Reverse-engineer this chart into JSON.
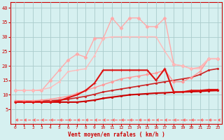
{
  "xlabel": "Vent moyen/en rafales ( km/h )",
  "xlim": [
    -0.5,
    23.5
  ],
  "ylim": [
    0,
    42
  ],
  "yticks": [
    5,
    10,
    15,
    20,
    25,
    30,
    35,
    40
  ],
  "xticks": [
    0,
    1,
    2,
    3,
    4,
    5,
    6,
    7,
    8,
    9,
    10,
    11,
    12,
    13,
    14,
    15,
    16,
    17,
    18,
    19,
    20,
    21,
    22,
    23
  ],
  "background_color": "#d6f0f0",
  "grid_color": "#aacccc",
  "series": [
    {
      "x": [
        0,
        1,
        2,
        3,
        4,
        5,
        6,
        7,
        8,
        9,
        10,
        11,
        12,
        13,
        14,
        15,
        16,
        17,
        18,
        19,
        20,
        21,
        22,
        23
      ],
      "y": [
        1.5,
        1.5,
        1.5,
        1.5,
        1.5,
        1.5,
        1.5,
        1.5,
        1.5,
        1.5,
        1.5,
        1.5,
        1.5,
        1.5,
        1.5,
        1.5,
        1.5,
        1.5,
        1.5,
        1.5,
        1.5,
        1.5,
        1.5,
        1.5
      ],
      "color": "#ff6666",
      "lw": 0.8,
      "marker": 4,
      "markersize": 3,
      "linestyle": "--"
    },
    {
      "x": [
        0,
        1,
        2,
        3,
        4,
        5,
        6,
        7,
        8,
        9,
        10,
        11,
        12,
        13,
        14,
        15,
        16,
        17,
        18,
        19,
        20,
        21,
        22,
        23
      ],
      "y": [
        7.5,
        7.5,
        7.5,
        7.5,
        7.5,
        7.5,
        7.5,
        7.5,
        7.8,
        8.2,
        8.8,
        9.2,
        9.6,
        10.0,
        10.2,
        10.4,
        10.6,
        10.7,
        10.9,
        11.0,
        11.1,
        11.2,
        11.4,
        11.5
      ],
      "color": "#cc0000",
      "lw": 1.5,
      "marker": "s",
      "markersize": 2,
      "linestyle": "-"
    },
    {
      "x": [
        0,
        1,
        2,
        3,
        4,
        5,
        6,
        7,
        8,
        9,
        10,
        11,
        12,
        13,
        14,
        15,
        16,
        17,
        18,
        19,
        20,
        21,
        22,
        23
      ],
      "y": [
        7.8,
        7.8,
        7.8,
        7.9,
        8.0,
        8.2,
        8.5,
        9.0,
        9.5,
        10.2,
        11.0,
        11.5,
        12.0,
        12.5,
        13.0,
        13.5,
        14.0,
        14.5,
        15.0,
        15.5,
        16.0,
        17.0,
        18.5,
        19.0
      ],
      "color": "#cc2222",
      "lw": 1.2,
      "marker": "s",
      "markersize": 1.8,
      "linestyle": "-"
    },
    {
      "x": [
        0,
        1,
        2,
        3,
        4,
        5,
        6,
        7,
        8,
        9,
        10,
        11,
        12,
        13,
        14,
        15,
        16,
        17,
        18,
        19,
        20,
        21,
        22,
        23
      ],
      "y": [
        8.0,
        8.0,
        8.0,
        8.2,
        8.5,
        9.0,
        9.5,
        10.5,
        11.5,
        12.5,
        13.5,
        14.5,
        15.5,
        16.0,
        16.5,
        17.0,
        17.5,
        18.5,
        14.5,
        14.5,
        16.0,
        18.0,
        22.5,
        22.5
      ],
      "color": "#ff9999",
      "lw": 1.0,
      "marker": "D",
      "markersize": 2,
      "linestyle": "-"
    },
    {
      "x": [
        0,
        1,
        2,
        3,
        4,
        5,
        6,
        7,
        8,
        9,
        10,
        11,
        12,
        13,
        14,
        15,
        16,
        17,
        18,
        19,
        20,
        21,
        22,
        23
      ],
      "y": [
        7.5,
        7.5,
        7.5,
        7.5,
        7.5,
        8.0,
        9.0,
        10.0,
        11.5,
        14.0,
        18.5,
        18.5,
        18.5,
        18.5,
        18.5,
        18.5,
        15.0,
        19.0,
        11.0,
        11.0,
        11.5,
        11.5,
        11.8,
        11.8
      ],
      "color": "#dd1111",
      "lw": 1.5,
      "marker": "+",
      "markersize": 3.5,
      "linestyle": "-"
    },
    {
      "x": [
        0,
        1,
        2,
        3,
        4,
        5,
        6,
        7,
        8,
        9,
        10,
        11,
        12,
        13,
        14,
        15,
        16,
        17,
        18,
        19,
        20,
        21,
        22,
        23
      ],
      "y": [
        11.5,
        11.5,
        11.5,
        11.5,
        15.0,
        18.5,
        22.0,
        24.0,
        23.0,
        29.5,
        29.5,
        36.5,
        33.0,
        36.5,
        36.5,
        33.5,
        33.5,
        36.5,
        20.5,
        20.0,
        19.0,
        19.5,
        22.5,
        22.5
      ],
      "color": "#ffaaaa",
      "lw": 1.0,
      "marker": "D",
      "markersize": 2.5,
      "linestyle": "-"
    },
    {
      "x": [
        0,
        1,
        2,
        3,
        4,
        5,
        6,
        7,
        8,
        9,
        10,
        11,
        12,
        13,
        14,
        15,
        16,
        17,
        18,
        19,
        20,
        21,
        22,
        23
      ],
      "y": [
        11.5,
        11.5,
        11.5,
        11.8,
        12.5,
        14.5,
        18.0,
        18.5,
        19.0,
        23.5,
        29.5,
        30.0,
        30.0,
        30.0,
        30.0,
        30.0,
        30.0,
        25.0,
        20.5,
        20.0,
        19.0,
        19.0,
        22.5,
        22.5
      ],
      "color": "#ffbbbb",
      "lw": 1.0,
      "marker": ".",
      "markersize": 3,
      "linestyle": "-"
    }
  ]
}
